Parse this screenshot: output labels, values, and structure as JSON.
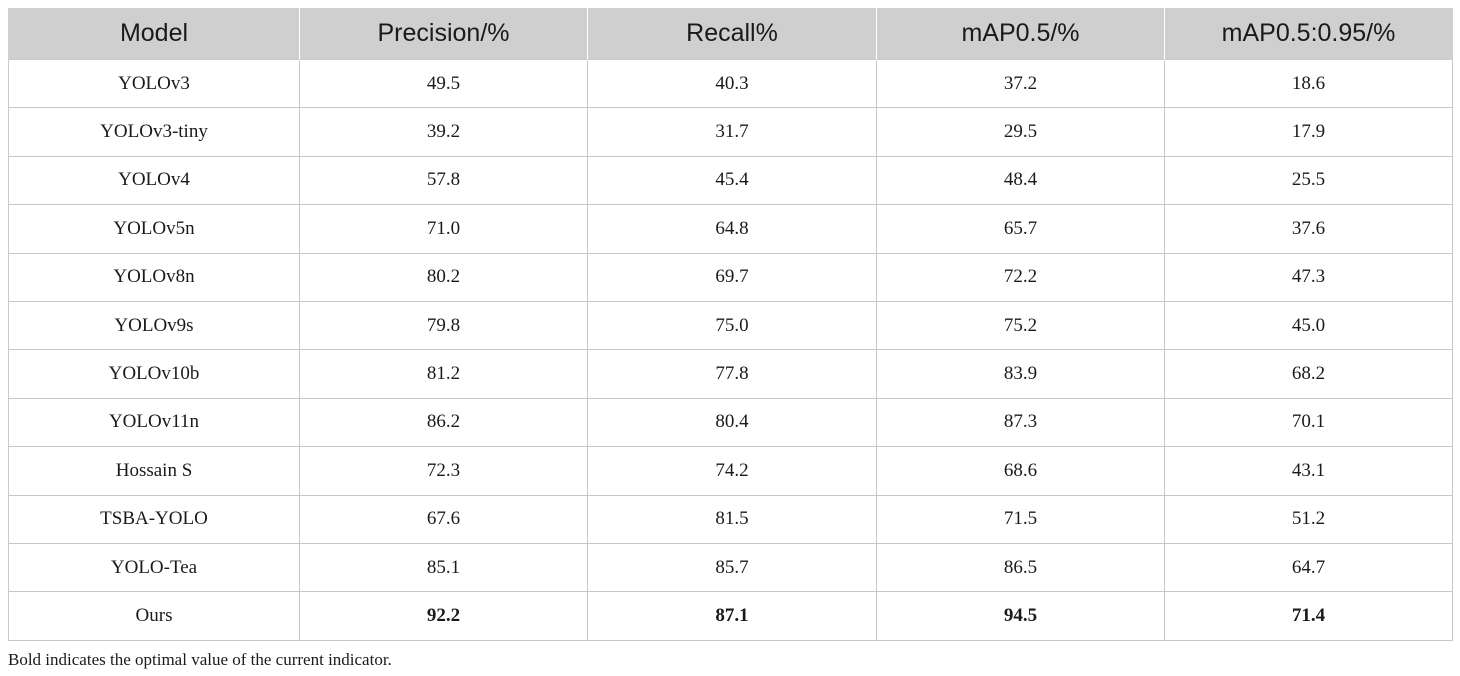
{
  "table": {
    "headers": [
      "Model",
      "Precision/%",
      "Recall%",
      "mAP0.5/%",
      "mAP0.5:0.95/%"
    ],
    "rows": [
      {
        "model": "YOLOv3",
        "precision": "49.5",
        "recall": "40.3",
        "map50": "37.2",
        "map5095": "18.6"
      },
      {
        "model": "YOLOv3-tiny",
        "precision": "39.2",
        "recall": "31.7",
        "map50": "29.5",
        "map5095": "17.9"
      },
      {
        "model": "YOLOv4",
        "precision": "57.8",
        "recall": "45.4",
        "map50": "48.4",
        "map5095": "25.5"
      },
      {
        "model": "YOLOv5n",
        "precision": "71.0",
        "recall": "64.8",
        "map50": "65.7",
        "map5095": "37.6"
      },
      {
        "model": "YOLOv8n",
        "precision": "80.2",
        "recall": "69.7",
        "map50": "72.2",
        "map5095": "47.3"
      },
      {
        "model": "YOLOv9s",
        "precision": "79.8",
        "recall": "75.0",
        "map50": "75.2",
        "map5095": "45.0"
      },
      {
        "model": "YOLOv10b",
        "precision": "81.2",
        "recall": "77.8",
        "map50": "83.9",
        "map5095": "68.2"
      },
      {
        "model": "YOLOv11n",
        "precision": "86.2",
        "recall": "80.4",
        "map50": "87.3",
        "map5095": "70.1"
      },
      {
        "model": "Hossain S",
        "precision": "72.3",
        "recall": "74.2",
        "map50": "68.6",
        "map5095": "43.1"
      },
      {
        "model": "TSBA-YOLO",
        "precision": "67.6",
        "recall": "81.5",
        "map50": "71.5",
        "map5095": "51.2"
      },
      {
        "model": "YOLO-Tea",
        "precision": "85.1",
        "recall": "85.7",
        "map50": "86.5",
        "map5095": "64.7"
      },
      {
        "model": "Ours",
        "precision": "92.2",
        "recall": "87.1",
        "map50": "94.5",
        "map5095": "71.4"
      }
    ]
  },
  "footnote": "Bold indicates the optimal value of the current indicator."
}
